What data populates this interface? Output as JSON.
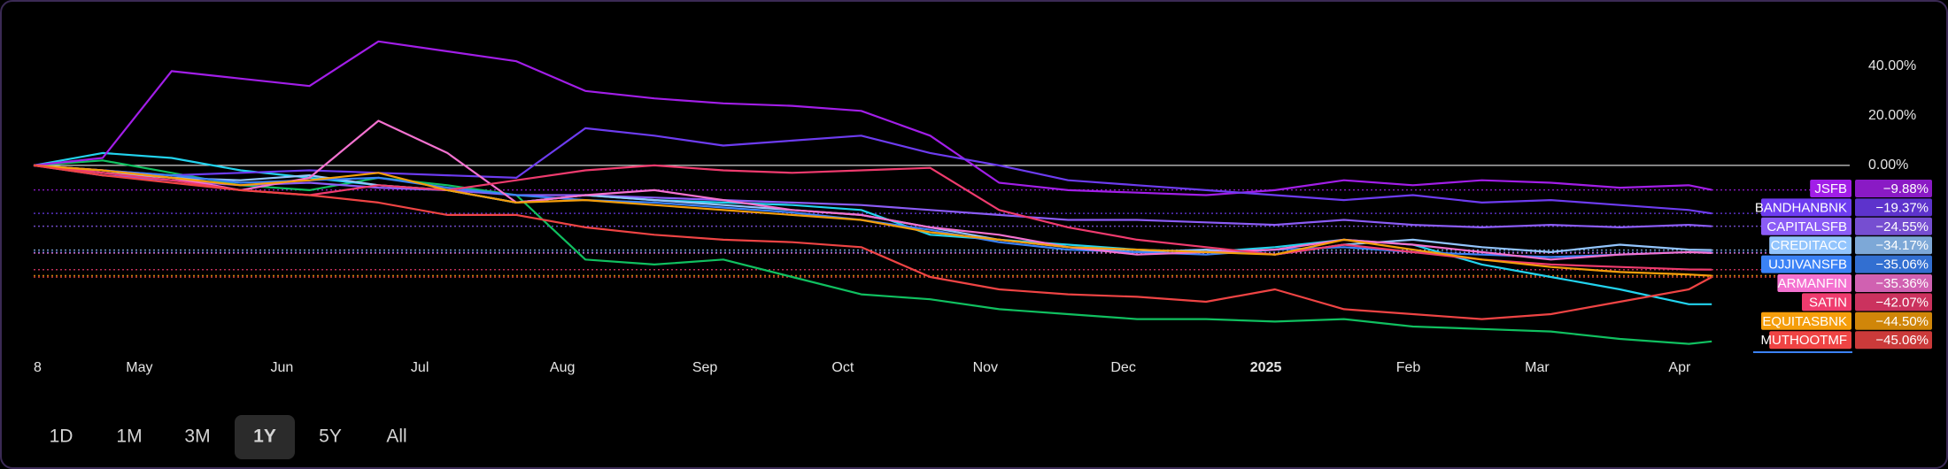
{
  "chart_data": {
    "type": "line",
    "x": [
      0,
      15,
      30,
      45,
      60,
      75,
      90,
      105,
      120,
      135,
      150,
      165,
      180,
      195,
      210,
      225,
      240,
      255,
      270,
      285,
      300,
      315,
      330,
      345,
      360,
      365
    ],
    "xlim": [
      0,
      395
    ],
    "xticks": [
      {
        "value": 0,
        "label": "8"
      },
      {
        "value": 23,
        "label": "May"
      },
      {
        "value": 54,
        "label": "Jun"
      },
      {
        "value": 84,
        "label": "Jul"
      },
      {
        "value": 115,
        "label": "Aug"
      },
      {
        "value": 146,
        "label": "Sep"
      },
      {
        "value": 176,
        "label": "Oct"
      },
      {
        "value": 207,
        "label": "Nov"
      },
      {
        "value": 237,
        "label": "Dec"
      },
      {
        "value": 268,
        "label": "2025"
      },
      {
        "value": 299,
        "label": "Feb"
      },
      {
        "value": 327,
        "label": "Mar"
      },
      {
        "value": 358,
        "label": "Apr"
      }
    ],
    "ylim": [
      -75,
      56
    ],
    "yticks": [
      {
        "value": 40,
        "label": "40.00%"
      },
      {
        "value": 20,
        "label": "20.00%"
      },
      {
        "value": 0,
        "label": "0.00%"
      }
    ],
    "series": [
      {
        "color": "#10c060",
        "values": [
          0,
          2,
          -3,
          -8,
          -10,
          -5,
          -8,
          -12,
          -38,
          -40,
          -38,
          -45,
          -52,
          -54,
          -58,
          -60,
          -62,
          -62,
          -63,
          -62,
          -65,
          -66,
          -67,
          -70,
          -72,
          -71
        ]
      },
      {
        "color": "#22d3ee",
        "values": [
          0,
          5,
          3,
          -2,
          -5,
          -8,
          -10,
          -15,
          -12,
          -14,
          -15,
          -16,
          -18,
          -28,
          -30,
          -32,
          -34,
          -35,
          -33,
          -30,
          -32,
          -40,
          -45,
          -50,
          -56,
          -56
        ]
      },
      {
        "name": "JSFB",
        "color": "#a21ee8",
        "values": [
          0,
          3,
          38,
          35,
          32,
          50,
          46,
          42,
          30,
          27,
          25,
          24,
          22,
          12,
          -7,
          -10,
          -11,
          -12,
          -10,
          -6,
          -8,
          -6,
          -7,
          -9,
          -8,
          -9.88
        ],
        "value_labels": [
          null,
          null,
          null,
          null,
          null,
          null,
          null,
          null,
          null,
          null,
          null,
          null,
          null,
          null,
          null,
          null,
          null,
          null,
          null,
          null,
          null,
          null,
          null,
          null,
          null,
          "−9.88%"
        ]
      },
      {
        "name": "BANDHANBNK",
        "color": "#6d3cf0",
        "values": [
          0,
          -2,
          -4,
          -3,
          -2,
          -3,
          -4,
          -5,
          15,
          12,
          8,
          10,
          12,
          5,
          0,
          -6,
          -8,
          -10,
          -12,
          -14,
          -12,
          -15,
          -14,
          -16,
          -18,
          -19.37
        ],
        "value_labels": [
          null,
          null,
          null,
          null,
          null,
          null,
          null,
          null,
          null,
          null,
          null,
          null,
          null,
          null,
          null,
          null,
          null,
          null,
          null,
          null,
          null,
          null,
          null,
          null,
          null,
          "−19.37%"
        ]
      },
      {
        "name": "CAPITALSFB",
        "color": "#8b5cf6",
        "values": [
          0,
          -4,
          -6,
          -8,
          -7,
          -9,
          -10,
          -12,
          -12,
          -13,
          -14,
          -15,
          -16,
          -18,
          -20,
          -22,
          -22,
          -23,
          -24,
          -22,
          -24,
          -25,
          -24,
          -25,
          -24,
          -24.55
        ],
        "value_labels": [
          null,
          null,
          null,
          null,
          null,
          null,
          null,
          null,
          null,
          null,
          null,
          null,
          null,
          null,
          null,
          null,
          null,
          null,
          null,
          null,
          null,
          null,
          null,
          null,
          null,
          "−24.55%"
        ]
      },
      {
        "name": "CREDITACC",
        "color": "#93c5fd",
        "values": [
          0,
          -3,
          -5,
          -6,
          -4,
          -8,
          -10,
          -15,
          -12,
          -14,
          -16,
          -18,
          -20,
          -25,
          -30,
          -33,
          -35,
          -34,
          -36,
          -32,
          -30,
          -33,
          -35,
          -32,
          -34,
          -34.17
        ],
        "value_labels": [
          null,
          null,
          null,
          null,
          null,
          null,
          null,
          null,
          null,
          null,
          null,
          null,
          null,
          null,
          null,
          null,
          null,
          null,
          null,
          null,
          null,
          null,
          null,
          null,
          null,
          "−34.17%"
        ]
      },
      {
        "name": "UJJIVANSFB",
        "color": "#3b82f6",
        "values": [
          0,
          -2,
          -4,
          -7,
          -6,
          -5,
          -9,
          -12,
          -14,
          -15,
          -17,
          -19,
          -22,
          -26,
          -31,
          -34,
          -35,
          -36,
          -34,
          -33,
          -35,
          -36,
          -37,
          -36,
          -35,
          -35.06
        ],
        "value_labels": [
          null,
          null,
          null,
          null,
          null,
          null,
          null,
          null,
          null,
          null,
          null,
          null,
          null,
          null,
          null,
          null,
          null,
          null,
          null,
          null,
          null,
          null,
          null,
          null,
          null,
          "−35.06%"
        ]
      },
      {
        "name": "ARMANFIN",
        "color": "#f472d0",
        "values": [
          0,
          -2,
          -5,
          -10,
          -5,
          18,
          5,
          -15,
          -12,
          -10,
          -14,
          -18,
          -20,
          -25,
          -28,
          -33,
          -36,
          -35,
          -34,
          -30,
          -32,
          -35,
          -38,
          -36,
          -35,
          -35.36
        ],
        "value_labels": [
          null,
          null,
          null,
          null,
          null,
          null,
          null,
          null,
          null,
          null,
          null,
          null,
          null,
          null,
          null,
          null,
          null,
          null,
          null,
          null,
          null,
          null,
          null,
          null,
          null,
          "−35.36%"
        ]
      },
      {
        "name": "SATIN",
        "color": "#ef3b6e",
        "values": [
          0,
          -3,
          -6,
          -10,
          -12,
          -8,
          -10,
          -6,
          -2,
          0,
          -2,
          -3,
          -2,
          -1,
          -18,
          -25,
          -30,
          -33,
          -36,
          -32,
          -35,
          -38,
          -40,
          -41,
          -42,
          -42.07
        ],
        "value_labels": [
          null,
          null,
          null,
          null,
          null,
          null,
          null,
          null,
          null,
          null,
          null,
          null,
          null,
          null,
          null,
          null,
          null,
          null,
          null,
          null,
          null,
          null,
          null,
          null,
          null,
          "−42.07%"
        ]
      },
      {
        "name": "EQUITASBNK",
        "color": "#f59e0b",
        "values": [
          0,
          -2,
          -5,
          -8,
          -6,
          -3,
          -10,
          -15,
          -14,
          -16,
          -18,
          -20,
          -22,
          -27,
          -30,
          -33,
          -34,
          -35,
          -36,
          -30,
          -34,
          -38,
          -41,
          -43,
          -44,
          -44.5
        ],
        "value_labels": [
          null,
          null,
          null,
          null,
          null,
          null,
          null,
          null,
          null,
          null,
          null,
          null,
          null,
          null,
          null,
          null,
          null,
          null,
          null,
          null,
          null,
          null,
          null,
          null,
          null,
          "−44.50%"
        ]
      },
      {
        "name": "MUTHOOTMF",
        "color": "#ef4444",
        "values": [
          0,
          -4,
          -7,
          -10,
          -12,
          -15,
          -20,
          -20,
          -25,
          -28,
          -30,
          -31,
          -33,
          -45,
          -50,
          -52,
          -53,
          -55,
          -50,
          -58,
          -60,
          -62,
          -60,
          -55,
          -50,
          -45.06
        ],
        "value_labels": [
          null,
          null,
          null,
          null,
          null,
          null,
          null,
          null,
          null,
          null,
          null,
          null,
          null,
          null,
          null,
          null,
          null,
          null,
          null,
          null,
          null,
          null,
          null,
          null,
          null,
          "−45.06%"
        ]
      }
    ]
  },
  "range_buttons": [
    "1D",
    "1M",
    "3M",
    "1Y",
    "5Y",
    "All"
  ],
  "selected_range": "1Y"
}
